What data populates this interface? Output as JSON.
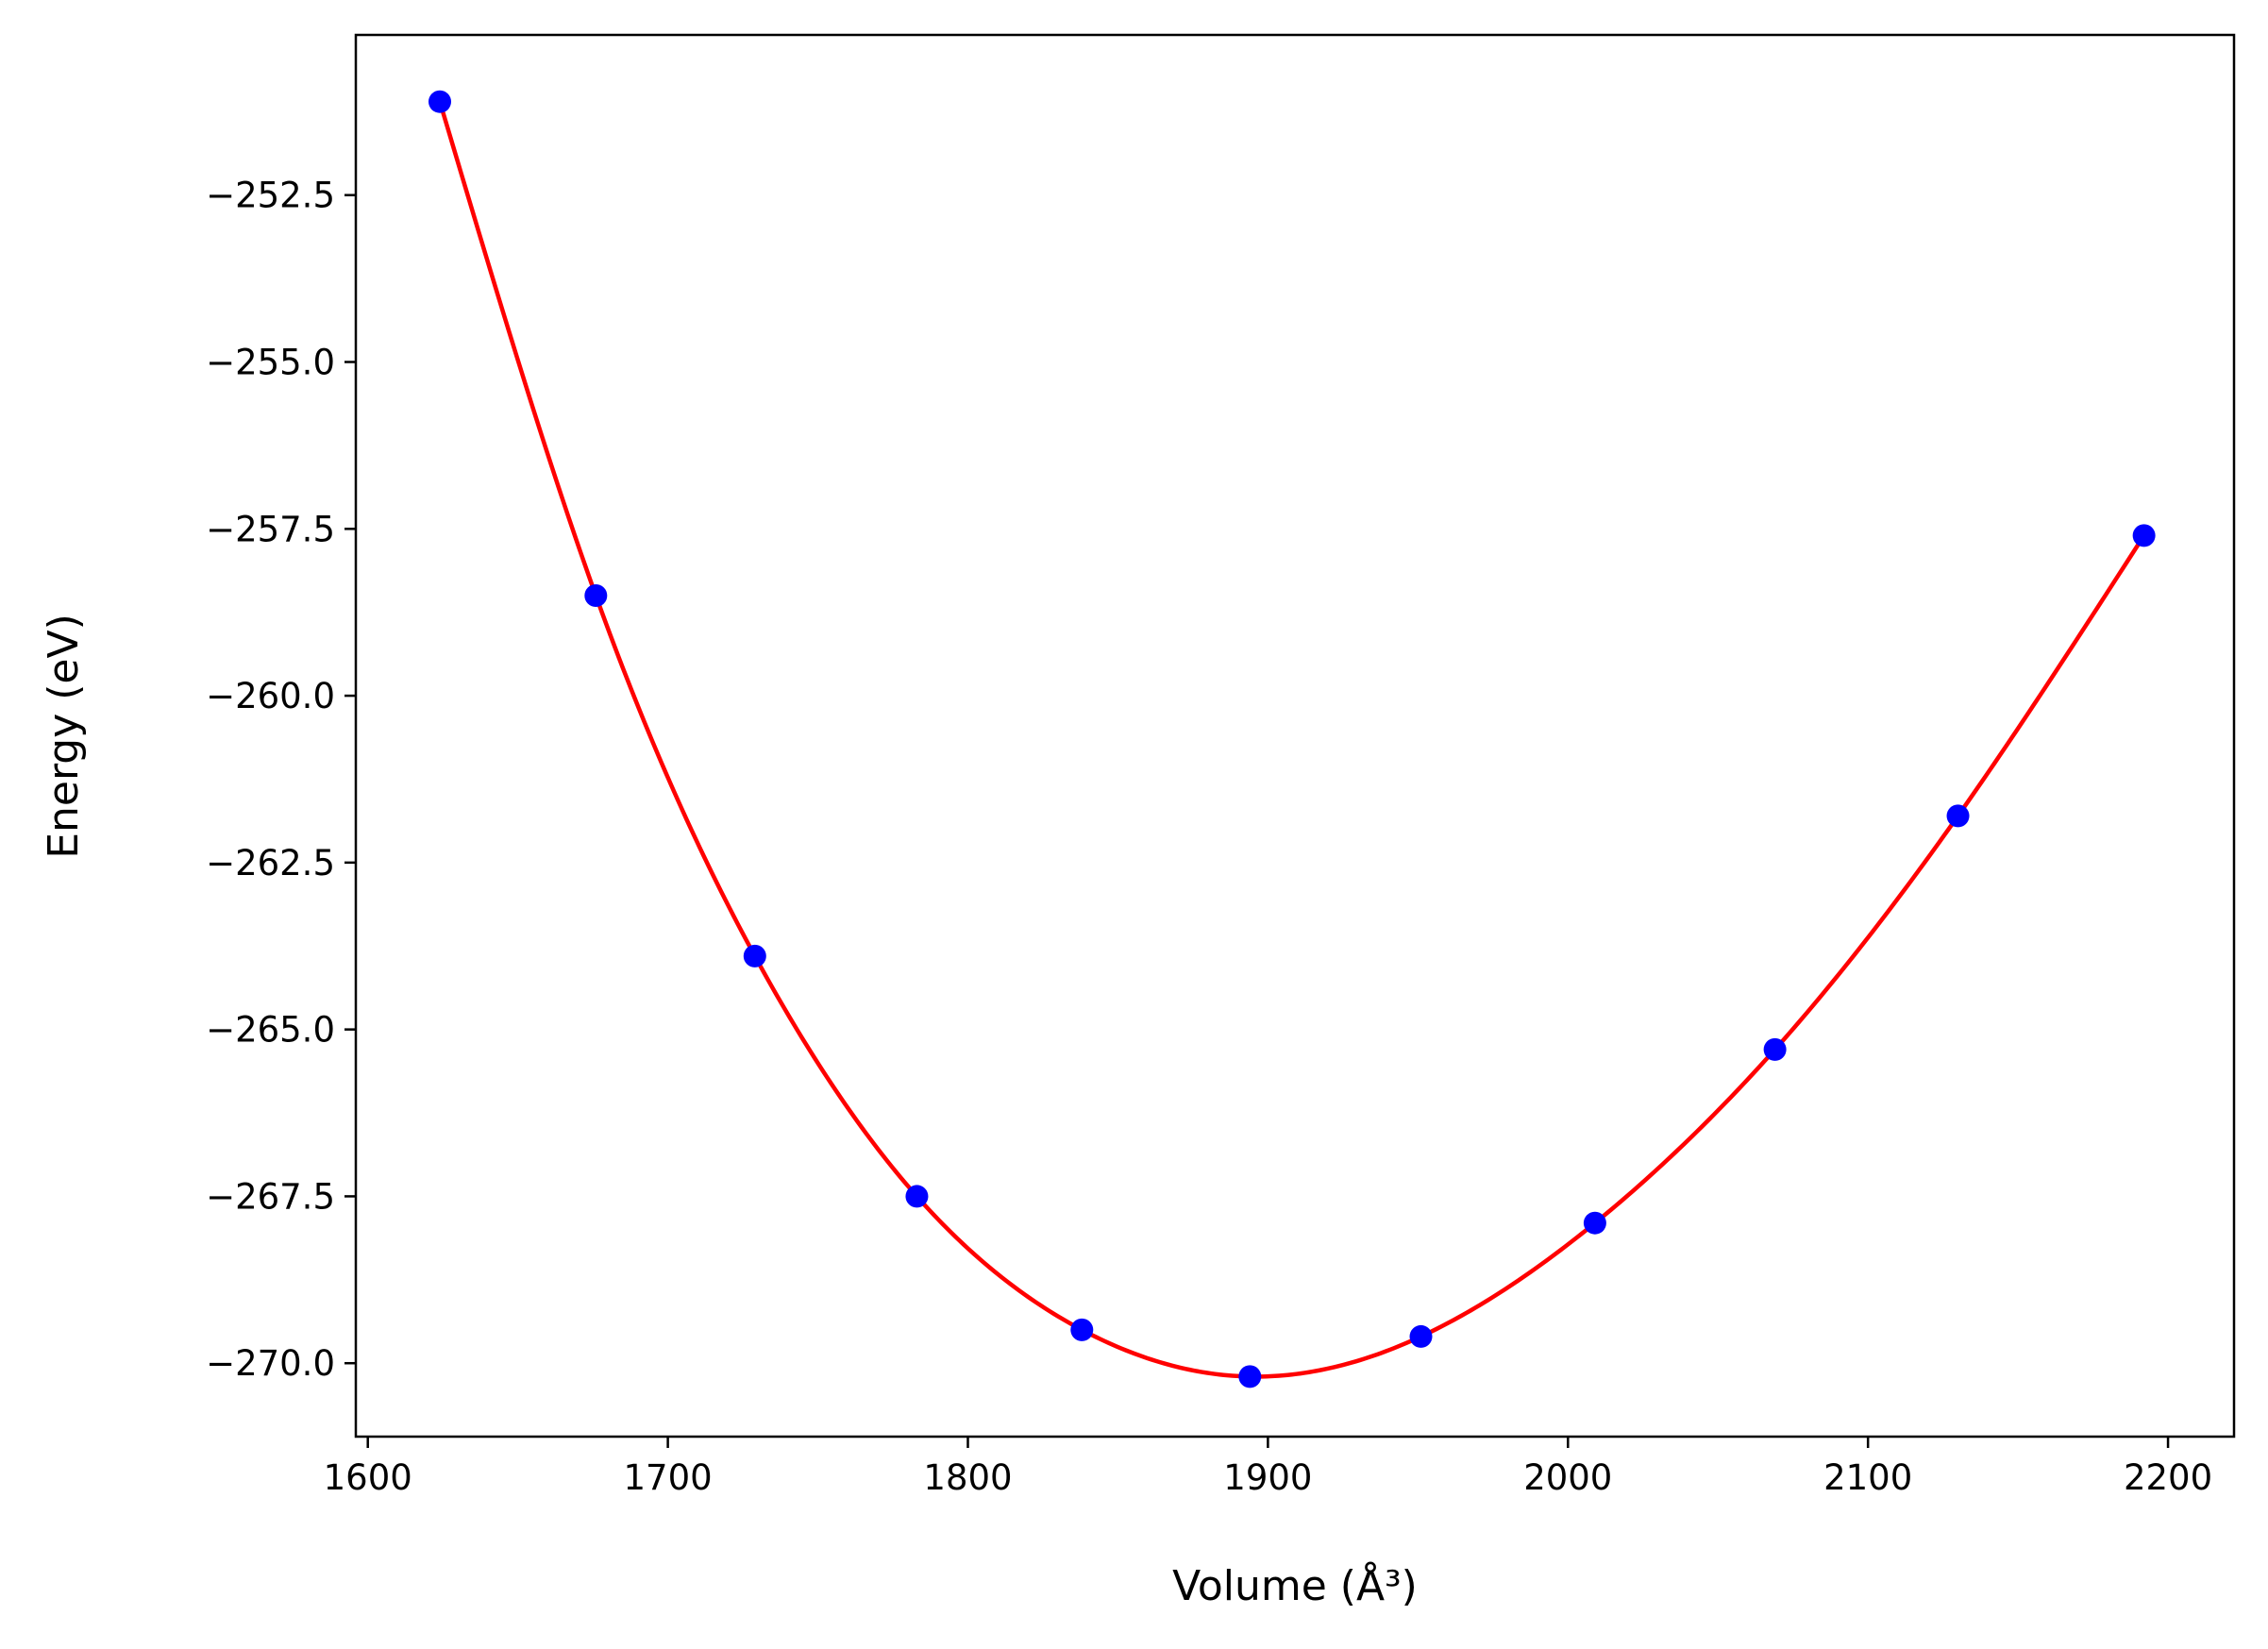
{
  "chart_data": {
    "type": "line",
    "title": "",
    "xlabel": "Volume (Å³)",
    "ylabel": "Energy (eV)",
    "xlim": [
      1596,
      2222
    ],
    "ylim": [
      -271.1,
      -250.1
    ],
    "xticks": [
      1600,
      1700,
      1800,
      1900,
      2000,
      2100,
      2200
    ],
    "yticks": [
      -252.5,
      -255.0,
      -257.5,
      -260.0,
      -262.5,
      -265.0,
      -267.5,
      -270.0
    ],
    "xtick_labels": [
      "1600",
      "1700",
      "1800",
      "1900",
      "2000",
      "2100",
      "2200"
    ],
    "ytick_labels": [
      "−252.5",
      "−255.0",
      "−257.5",
      "−260.0",
      "−262.5",
      "−265.0",
      "−267.5",
      "−270.0"
    ],
    "grid": false,
    "series": [
      {
        "kind": "points",
        "color": "#0000ff",
        "x": [
          1624,
          1676,
          1729,
          1783,
          1838,
          1894,
          1951,
          2009,
          2069,
          2130,
          2192
        ],
        "y": [
          -251.1,
          -258.5,
          -263.9,
          -267.5,
          -269.5,
          -270.2,
          -269.6,
          -267.9,
          -265.3,
          -261.8,
          -257.6
        ]
      },
      {
        "kind": "fit",
        "color": "#ff0000",
        "x": [
          1624,
          1676,
          1729,
          1783,
          1838,
          1894,
          1951,
          2009,
          2069,
          2130,
          2192
        ],
        "y": [
          -251.1,
          -258.5,
          -263.9,
          -267.5,
          -269.5,
          -270.2,
          -269.6,
          -267.9,
          -265.3,
          -261.8,
          -257.6
        ]
      }
    ]
  }
}
